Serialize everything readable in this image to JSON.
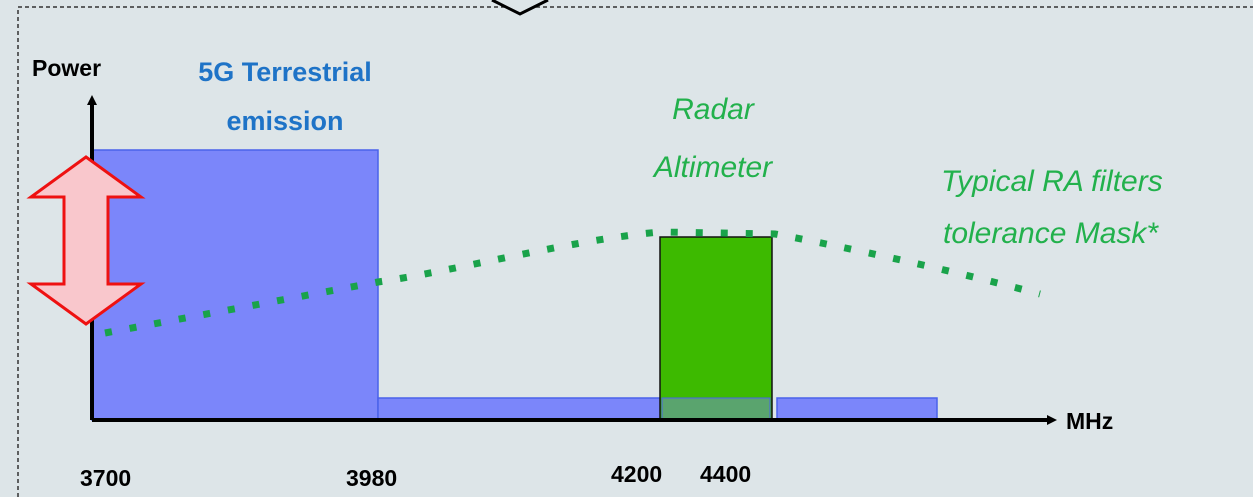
{
  "axes": {
    "y_label": "Power",
    "x_label": "MHz"
  },
  "labels": {
    "terrestrial_line1": "5G Terrestrial",
    "terrestrial_line2": "emission",
    "radar_line1": "Radar",
    "radar_line2": "Altimeter",
    "mask_line1": "Typical RA filters",
    "mask_line2": "tolerance Mask*"
  },
  "ticks": [
    "3700",
    "3980",
    "4200",
    "4400"
  ],
  "colors": {
    "background": "#dde5e8",
    "frame_border": "#333333",
    "emission_fill": "#7b86fa",
    "emission_stroke": "#4a62ea",
    "radar_fill": "#3dba00",
    "radar_overlap_fill": "#5aa46e",
    "mask_dots": "#19a34a",
    "arrow_fill": "#f9c7cc",
    "arrow_stroke": "#ee1111",
    "terrestrial_text": "#1e73c7",
    "radar_text": "#22b14c",
    "axis": "#000000"
  },
  "icons": {
    "power_level_arrow": "double-arrow-vertical",
    "top_connector": "chevron-down-icon"
  }
}
